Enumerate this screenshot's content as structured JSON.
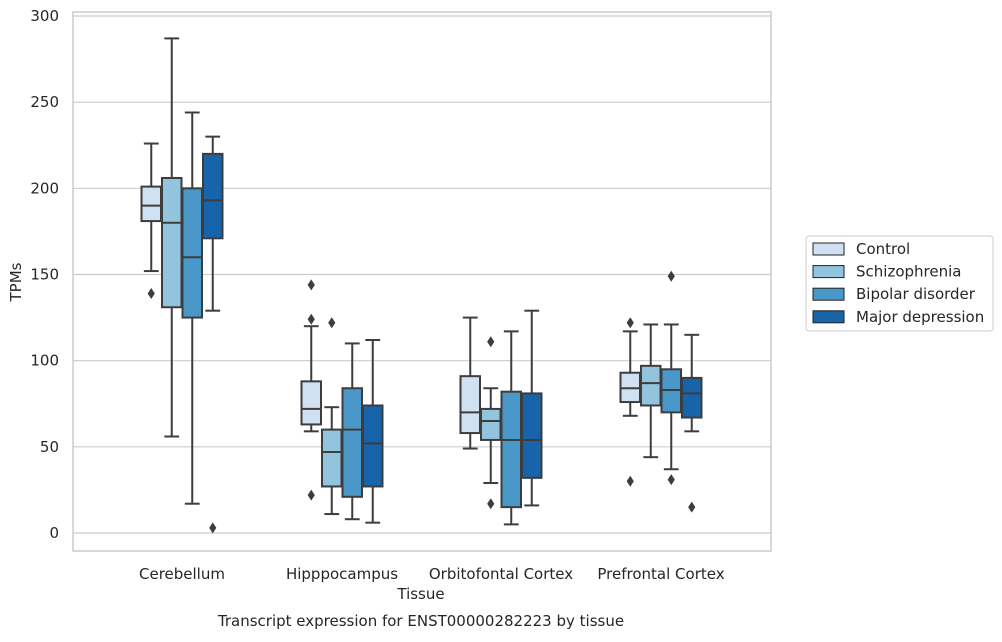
{
  "chart_data": {
    "type": "box",
    "title": "",
    "caption": "Transcript expression for ENST00000282223 by tissue",
    "xlabel": "Tissue",
    "ylabel": "TPMs",
    "ylim": [
      -10,
      302
    ],
    "yticks": [
      0,
      50,
      100,
      150,
      200,
      250,
      300
    ],
    "grid": true,
    "legend_position": "right",
    "categories": [
      "Cerebellum",
      "Hipppocampus",
      "Orbitofontal Cortex",
      "Prefrontal Cortex"
    ],
    "series": [
      {
        "name": "Control",
        "color": "#cfe1f2",
        "boxes": [
          {
            "min": 152,
            "q1": 181,
            "median": 190,
            "q3": 201,
            "max": 226,
            "outliers": [
              139
            ]
          },
          {
            "min": 59,
            "q1": 63,
            "median": 72,
            "q3": 88,
            "max": 120,
            "outliers": [
              144,
              124,
              22
            ]
          },
          {
            "min": 49,
            "q1": 58,
            "median": 70,
            "q3": 91,
            "max": 125,
            "outliers": []
          },
          {
            "min": 68,
            "q1": 76,
            "median": 84,
            "q3": 93,
            "max": 117,
            "outliers": [
              122,
              30
            ]
          }
        ]
      },
      {
        "name": "Schizophrenia",
        "color": "#93c4de",
        "boxes": [
          {
            "min": 56,
            "q1": 131,
            "median": 180,
            "q3": 206,
            "max": 287,
            "outliers": []
          },
          {
            "min": 11,
            "q1": 27,
            "median": 47,
            "q3": 60,
            "max": 73,
            "outliers": [
              122
            ]
          },
          {
            "min": 29,
            "q1": 54,
            "median": 65,
            "q3": 72,
            "max": 84,
            "outliers": [
              111,
              17
            ]
          },
          {
            "min": 44,
            "q1": 74,
            "median": 87,
            "q3": 97,
            "max": 121,
            "outliers": []
          }
        ]
      },
      {
        "name": "Bipolar disorder",
        "color": "#4a98c9",
        "boxes": [
          {
            "min": 17,
            "q1": 125,
            "median": 160,
            "q3": 200,
            "max": 244,
            "outliers": []
          },
          {
            "min": 8,
            "q1": 21,
            "median": 60,
            "q3": 84,
            "max": 110,
            "outliers": []
          },
          {
            "min": 5,
            "q1": 15,
            "median": 54,
            "q3": 82,
            "max": 117,
            "outliers": []
          },
          {
            "min": 37,
            "q1": 70,
            "median": 83,
            "q3": 95,
            "max": 121,
            "outliers": [
              149,
              31
            ]
          }
        ]
      },
      {
        "name": "Major depression",
        "color": "#1764ab",
        "boxes": [
          {
            "min": 129,
            "q1": 171,
            "median": 193,
            "q3": 220,
            "max": 230,
            "outliers": [
              3
            ]
          },
          {
            "min": 6,
            "q1": 27,
            "median": 52,
            "q3": 74,
            "max": 112,
            "outliers": []
          },
          {
            "min": 16,
            "q1": 32,
            "median": 54,
            "q3": 81,
            "max": 129,
            "outliers": []
          },
          {
            "min": 59,
            "q1": 67,
            "median": 81,
            "q3": 90,
            "max": 115,
            "outliers": [
              15
            ]
          }
        ]
      }
    ]
  }
}
